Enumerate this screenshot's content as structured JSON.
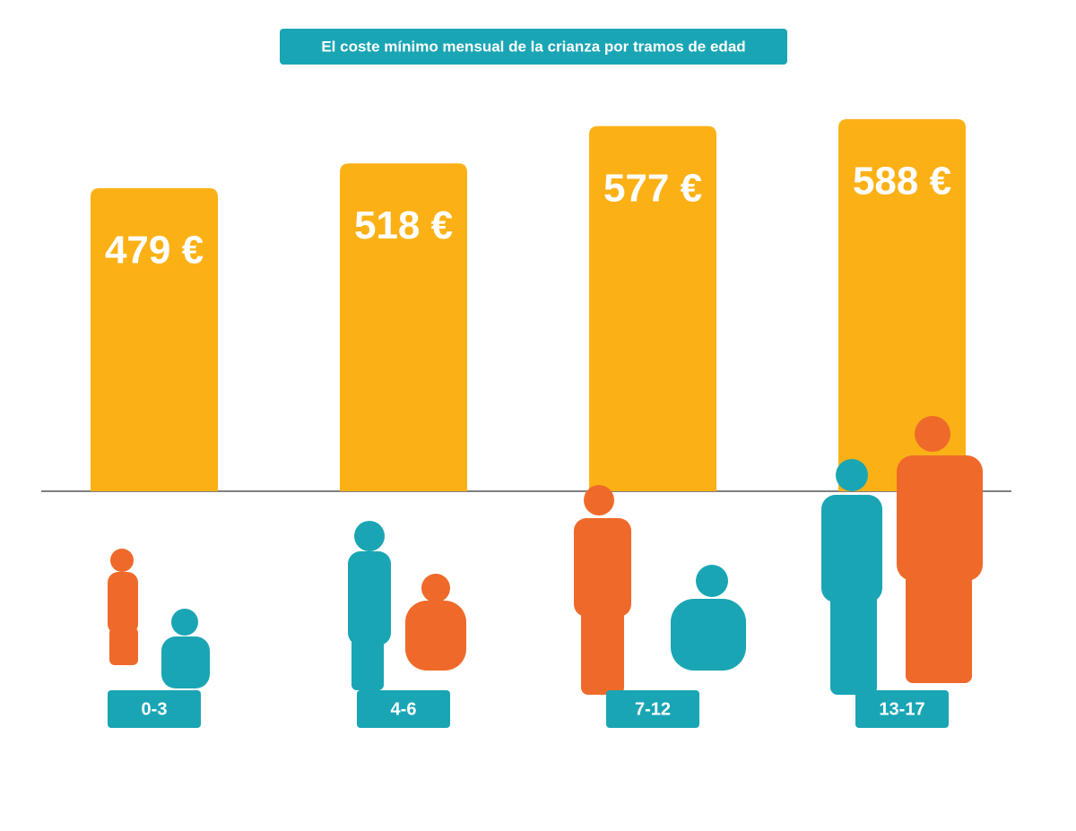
{
  "chart_data": {
    "type": "bar",
    "title": "El coste mínimo mensual de la crianza por tramos de edad",
    "categories": [
      "0-3",
      "4-6",
      "7-12",
      "13-17"
    ],
    "values": [
      479,
      518,
      577,
      588
    ],
    "value_labels": [
      "479 €",
      "518 €",
      "577 €",
      "588 €"
    ],
    "color": "#fbb116"
  }
}
